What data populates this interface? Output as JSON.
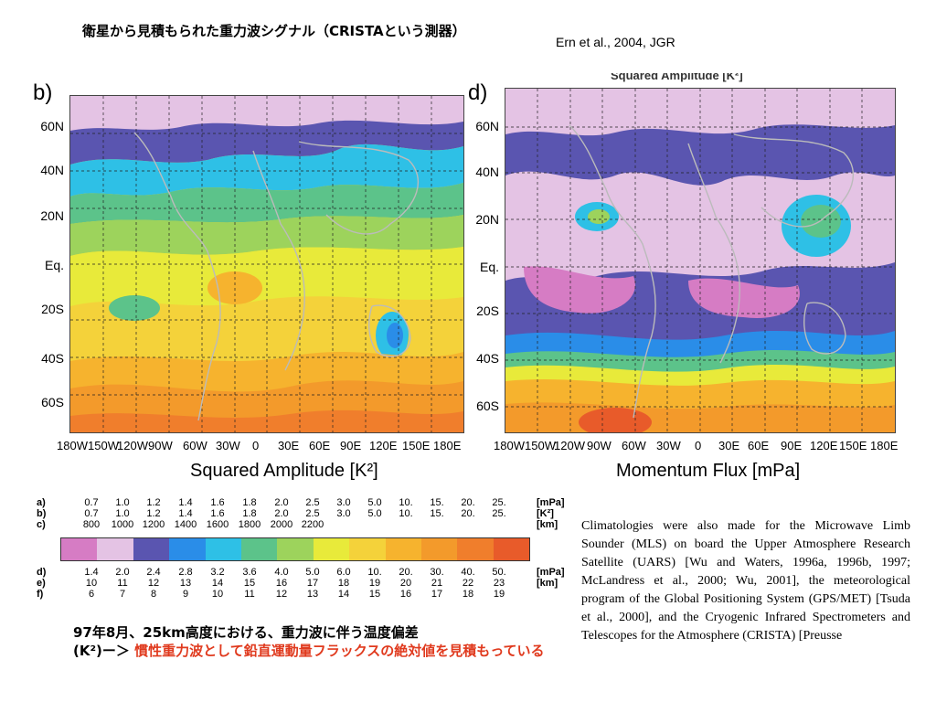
{
  "header": {
    "title": "衛星から見積もられた重力波シグナル（CRISTAという測器）",
    "citation": "Ern et al., 2004, JGR"
  },
  "panel_b": {
    "letter": "b)",
    "y_labels": [
      "60N",
      "40N",
      "20N",
      "Eq.",
      "20S",
      "40S",
      "60S"
    ],
    "x_labels": [
      "180W",
      "150W",
      "120W",
      "90W",
      "60W",
      "30W",
      "0",
      "30E",
      "60E",
      "90E",
      "120E",
      "150E",
      "180E"
    ],
    "caption": "Squared Amplitude [K²]"
  },
  "panel_d": {
    "letter": "d)",
    "top_cut_caption": "Squared Amplitude [K²]",
    "y_labels": [
      "60N",
      "40N",
      "20N",
      "Eq.",
      "20S",
      "40S",
      "60S"
    ],
    "x_labels": [
      "180W",
      "150W",
      "120W",
      "90W",
      "60W",
      "30W",
      "0",
      "30E",
      "60E",
      "90E",
      "120E",
      "150E",
      "180E"
    ],
    "caption": "Momentum Flux [mPa]"
  },
  "scale": {
    "colors": [
      "#d67cc4",
      "#e4c3e4",
      "#5a55b0",
      "#2a8de8",
      "#2ec0e6",
      "#5cc38a",
      "#9dd35c",
      "#e8ea3a",
      "#f4d23a",
      "#f6b32e",
      "#f39a2b",
      "#f07e2c",
      "#e85b2a"
    ],
    "rows_top": [
      {
        "key": "a)",
        "unit": "[mPa]",
        "values": [
          "0.7",
          "1.0",
          "1.2",
          "1.4",
          "1.6",
          "1.8",
          "2.0",
          "2.5",
          "3.0",
          "5.0",
          "10.",
          "15.",
          "20.",
          "25."
        ]
      },
      {
        "key": "b)",
        "unit": "[K²]",
        "values": [
          "0.7",
          "1.0",
          "1.2",
          "1.4",
          "1.6",
          "1.8",
          "2.0",
          "2.5",
          "3.0",
          "5.0",
          "10.",
          "15.",
          "20.",
          "25."
        ]
      },
      {
        "key": "c)",
        "unit": "[km]",
        "values": [
          "800",
          "1000",
          "1200",
          "1400",
          "1600",
          "1800",
          "2000",
          "2200",
          "",
          "",
          "",
          "",
          "",
          ""
        ]
      }
    ],
    "rows_bottom": [
      {
        "key": "d)",
        "unit": "[mPa]",
        "values": [
          "1.4",
          "2.0",
          "2.4",
          "2.8",
          "3.2",
          "3.6",
          "4.0",
          "5.0",
          "6.0",
          "10.",
          "20.",
          "30.",
          "40.",
          "50."
        ]
      },
      {
        "key": "e)",
        "unit": "[km]",
        "values": [
          "10",
          "11",
          "12",
          "13",
          "14",
          "15",
          "16",
          "17",
          "18",
          "19",
          "20",
          "21",
          "22",
          "23"
        ]
      },
      {
        "key": "f)",
        "unit": "",
        "values": [
          "6",
          "7",
          "8",
          "9",
          "10",
          "11",
          "12",
          "13",
          "14",
          "15",
          "16",
          "17",
          "18",
          "19"
        ]
      }
    ]
  },
  "bottom_text": {
    "line1": "97年8月、25km高度における、重力波に伴う温度偏差",
    "line2_prefix": "(K²)ー＞ ",
    "line2_red": "慣性重力波として鉛直運動量フラックスの絶対値を見積もっている"
  },
  "paragraph": {
    "text": "Climatologies were also made for the Microwave Limb Sounder (MLS) on board the Upper Atmosphere Research Satellite (UARS) [Wu and Waters, 1996a, 1996b, 1997; McLandress et al., 2000; Wu, 2001], the meteorological program of the Global Positioning System (GPS/MET) [Tsuda et al., 2000], and the Cryogenic Infrared Spectrometers and Telescopes for the Atmosphere (CRISTA) [Preusse"
  }
}
